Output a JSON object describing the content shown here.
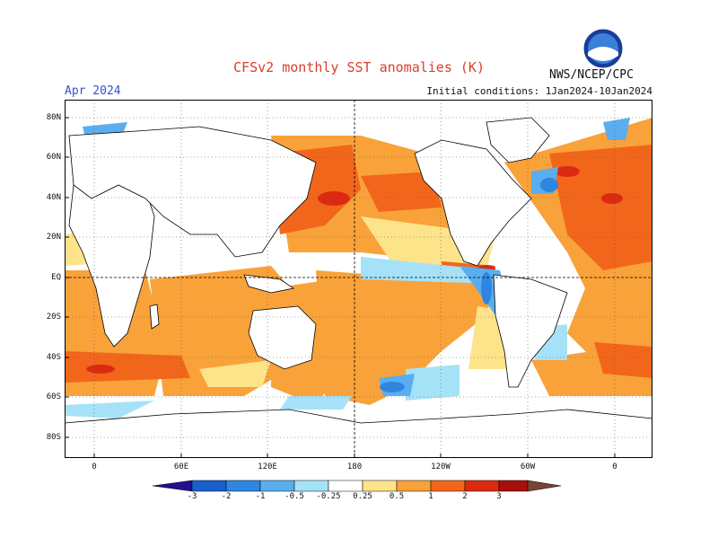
{
  "header": {
    "title": "CFSv2 monthly SST anomalies (K)",
    "agency": "NWS/NCEP/CPC",
    "month": "Apr 2024",
    "initial_conditions": "Initial conditions: 1Jan2024-10Jan2024",
    "logo_text": "NOAA"
  },
  "axes": {
    "lat_labels": [
      "80N",
      "60N",
      "40N",
      "20N",
      "EQ",
      "20S",
      "40S",
      "60S",
      "80S"
    ],
    "lon_labels": [
      "0",
      "60E",
      "120E",
      "180",
      "120W",
      "60W",
      "0"
    ]
  },
  "colorbar": {
    "levels": [
      "-3",
      "-2",
      "-1",
      "-0.5",
      "-0.25",
      "0.25",
      "0.5",
      "1",
      "2",
      "3"
    ],
    "colors": [
      "#24108c",
      "#1a5fcc",
      "#2e86e0",
      "#5aaeef",
      "#a6e2f7",
      "#ffffff",
      "#fde38a",
      "#f9a23a",
      "#f2661c",
      "#dc2a10",
      "#a8100c",
      "#7a4434"
    ]
  },
  "map_colors": {
    "ocean_neutral": "#ffffff",
    "positive_light": "#fde38a",
    "positive_mid": "#f9a23a",
    "positive_strong": "#f2661c",
    "positive_high": "#dc2a10",
    "negative_light": "#a6e2f7",
    "negative_mid": "#5aaeef",
    "negative_strong": "#2e86e0"
  }
}
